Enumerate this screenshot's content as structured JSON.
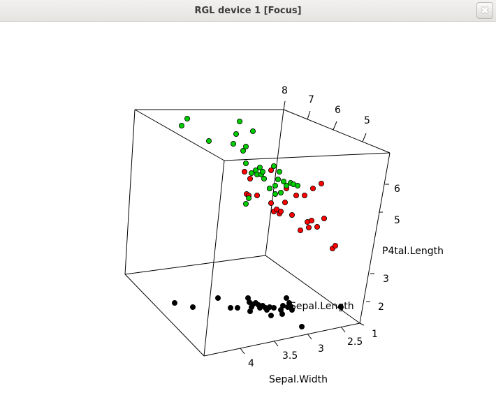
{
  "window": {
    "title": "RGL device 1 [Focus]",
    "close_icon": "close-icon"
  },
  "chart_data": {
    "type": "scatter",
    "dimensions": 3,
    "axes": {
      "x": {
        "label": "Sepal.Width",
        "ticks": [
          "2.5",
          "3",
          "3.5",
          "4"
        ]
      },
      "y": {
        "label": "Sepal.Length",
        "ticks": [
          "5",
          "6",
          "7",
          "8"
        ]
      },
      "z": {
        "label": "P4tal.Length",
        "ticks": [
          "1",
          "2",
          "3",
          "5",
          "6"
        ]
      }
    },
    "box": true,
    "grid": false,
    "legend": "none",
    "series": [
      {
        "color": "#000000",
        "points": [
          [
            250,
            434
          ],
          [
            276,
            440
          ],
          [
            312,
            427
          ],
          [
            330,
            441
          ],
          [
            340,
            441
          ],
          [
            355,
            427
          ],
          [
            357,
            433
          ],
          [
            358,
            446
          ],
          [
            360,
            440
          ],
          [
            362,
            436
          ],
          [
            366,
            434
          ],
          [
            370,
            437
          ],
          [
            372,
            441
          ],
          [
            376,
            438
          ],
          [
            380,
            441
          ],
          [
            382,
            444
          ],
          [
            386,
            440
          ],
          [
            388,
            452
          ],
          [
            392,
            441
          ],
          [
            402,
            444
          ],
          [
            404,
            450
          ],
          [
            405,
            438
          ],
          [
            410,
            427
          ],
          [
            412,
            440
          ],
          [
            414,
            434
          ],
          [
            416,
            439
          ],
          [
            418,
            444
          ],
          [
            432,
            468
          ],
          [
            488,
            440
          ]
        ]
      },
      {
        "color": "#ff0000",
        "points": [
          [
            350,
            246
          ],
          [
            353,
            278
          ],
          [
            356,
            280
          ],
          [
            358,
            256
          ],
          [
            368,
            280
          ],
          [
            386,
            270
          ],
          [
            388,
            244
          ],
          [
            388,
            291
          ],
          [
            392,
            303
          ],
          [
            396,
            300
          ],
          [
            400,
            306
          ],
          [
            402,
            303
          ],
          [
            408,
            290
          ],
          [
            410,
            270
          ],
          [
            418,
            308
          ],
          [
            424,
            280
          ],
          [
            430,
            330
          ],
          [
            436,
            280
          ],
          [
            440,
            318
          ],
          [
            442,
            326
          ],
          [
            446,
            316
          ],
          [
            448,
            270
          ],
          [
            454,
            325
          ],
          [
            460,
            263
          ],
          [
            464,
            313
          ],
          [
            476,
            356
          ],
          [
            480,
            352
          ]
        ]
      },
      {
        "color": "#00cd00",
        "points": [
          [
            260,
            180
          ],
          [
            268,
            170
          ],
          [
            299,
            202
          ],
          [
            334,
            206
          ],
          [
            338,
            192
          ],
          [
            343,
            174
          ],
          [
            348,
            216
          ],
          [
            352,
            210
          ],
          [
            352,
            234
          ],
          [
            352,
            292
          ],
          [
            356,
            284
          ],
          [
            360,
            248
          ],
          [
            362,
            188
          ],
          [
            366,
            244
          ],
          [
            368,
            250
          ],
          [
            372,
            240
          ],
          [
            374,
            250
          ],
          [
            376,
            246
          ],
          [
            378,
            256
          ],
          [
            386,
            270
          ],
          [
            392,
            238
          ],
          [
            394,
            278
          ],
          [
            394,
            266
          ],
          [
            398,
            257
          ],
          [
            400,
            246
          ],
          [
            402,
            276
          ],
          [
            406,
            260
          ],
          [
            410,
            266
          ],
          [
            416,
            262
          ],
          [
            420,
            264
          ],
          [
            426,
            266
          ]
        ]
      }
    ]
  }
}
